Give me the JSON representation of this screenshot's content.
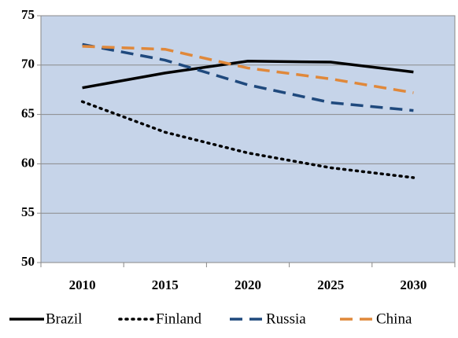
{
  "chart_data": {
    "type": "line",
    "categories": [
      "2010",
      "2015",
      "2020",
      "2025",
      "2030"
    ],
    "series": [
      {
        "name": "Brazil",
        "color": "#000000",
        "dash": "solid",
        "values": [
          67.7,
          69.2,
          70.4,
          70.3,
          69.3
        ]
      },
      {
        "name": "Finland",
        "color": "#000000",
        "dash": "dotted",
        "values": [
          66.3,
          63.2,
          61.1,
          59.6,
          58.6
        ]
      },
      {
        "name": "Russia",
        "color": "#1f497d",
        "dash": "dashed",
        "values": [
          72.1,
          70.5,
          68.0,
          66.2,
          65.4
        ]
      },
      {
        "name": "China",
        "color": "#e0883a",
        "dash": "dashed",
        "values": [
          71.9,
          71.6,
          69.7,
          68.6,
          67.2
        ]
      }
    ],
    "ylim": [
      50,
      75
    ],
    "yticks": [
      50,
      55,
      60,
      65,
      70,
      75
    ],
    "grid": true,
    "legend": "bottom"
  }
}
